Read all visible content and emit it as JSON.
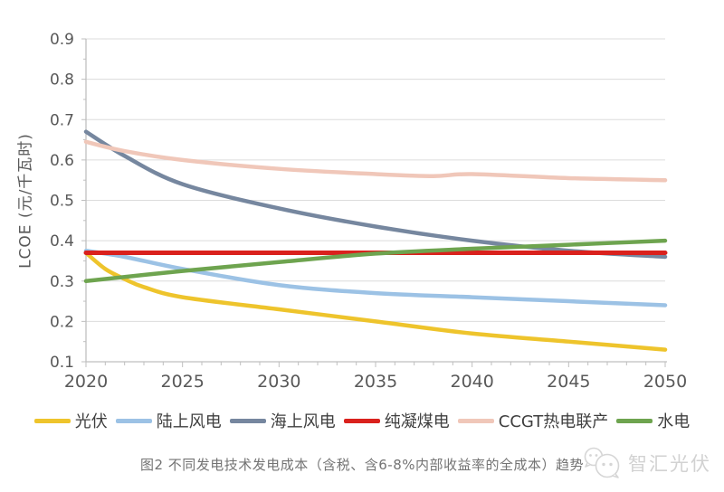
{
  "chart_data": {
    "type": "line",
    "title": "",
    "xlabel": "",
    "ylabel": "LCOE (元/千瓦时)",
    "xlim": [
      2020,
      2050
    ],
    "ylim": [
      0.1,
      0.9
    ],
    "x_ticks": [
      2020,
      2025,
      2030,
      2035,
      2040,
      2045,
      2050
    ],
    "y_ticks": [
      0.1,
      0.2,
      0.3,
      0.4,
      0.5,
      0.6,
      0.7,
      0.8,
      0.9
    ],
    "grid": "horizontal",
    "legend_position": "bottom",
    "series": [
      {
        "name": "光伏",
        "color": "#eec42c",
        "line_width": 4.5,
        "points": [
          [
            2020,
            0.37
          ],
          [
            2021,
            0.33
          ],
          [
            2022,
            0.305
          ],
          [
            2023,
            0.285
          ],
          [
            2025,
            0.26
          ],
          [
            2030,
            0.23
          ],
          [
            2035,
            0.2
          ],
          [
            2040,
            0.17
          ],
          [
            2045,
            0.15
          ],
          [
            2050,
            0.13
          ]
        ]
      },
      {
        "name": "陆上风电",
        "color": "#9cc2e5",
        "line_width": 4.5,
        "points": [
          [
            2020,
            0.375
          ],
          [
            2022,
            0.36
          ],
          [
            2025,
            0.33
          ],
          [
            2030,
            0.29
          ],
          [
            2035,
            0.27
          ],
          [
            2040,
            0.26
          ],
          [
            2045,
            0.25
          ],
          [
            2050,
            0.24
          ]
        ]
      },
      {
        "name": "海上风电",
        "color": "#76879f",
        "line_width": 4.5,
        "points": [
          [
            2020,
            0.67
          ],
          [
            2022,
            0.61
          ],
          [
            2025,
            0.54
          ],
          [
            2030,
            0.48
          ],
          [
            2035,
            0.435
          ],
          [
            2040,
            0.4
          ],
          [
            2045,
            0.375
          ],
          [
            2050,
            0.36
          ]
        ]
      },
      {
        "name": "纯凝煤电",
        "color": "#da211d",
        "line_width": 5,
        "points": [
          [
            2020,
            0.37
          ],
          [
            2035,
            0.37
          ],
          [
            2050,
            0.37
          ]
        ]
      },
      {
        "name": "CCGT热电联产",
        "color": "#f0c7b9",
        "line_width": 4.5,
        "points": [
          [
            2020,
            0.645
          ],
          [
            2022,
            0.622
          ],
          [
            2025,
            0.6
          ],
          [
            2030,
            0.578
          ],
          [
            2035,
            0.565
          ],
          [
            2038,
            0.56
          ],
          [
            2040,
            0.565
          ],
          [
            2045,
            0.555
          ],
          [
            2050,
            0.55
          ]
        ]
      },
      {
        "name": "水电",
        "color": "#6ea44f",
        "line_width": 4.5,
        "points": [
          [
            2020,
            0.3
          ],
          [
            2025,
            0.325
          ],
          [
            2030,
            0.347
          ],
          [
            2035,
            0.368
          ],
          [
            2040,
            0.38
          ],
          [
            2045,
            0.39
          ],
          [
            2050,
            0.4
          ]
        ]
      }
    ]
  },
  "caption": {
    "text": "图2 不同发电技术发电成本（含税、含6-8%内部收益率的全成本）趋势"
  },
  "watermark": {
    "text": "智汇光伏",
    "icon": "wechat-logo"
  },
  "colors": {
    "grid": "#dcdcdc",
    "axis": "#bfbfbf",
    "tick": "#bfbfbf",
    "tick_label": "#595959",
    "watermark": "#d6d6d6"
  }
}
